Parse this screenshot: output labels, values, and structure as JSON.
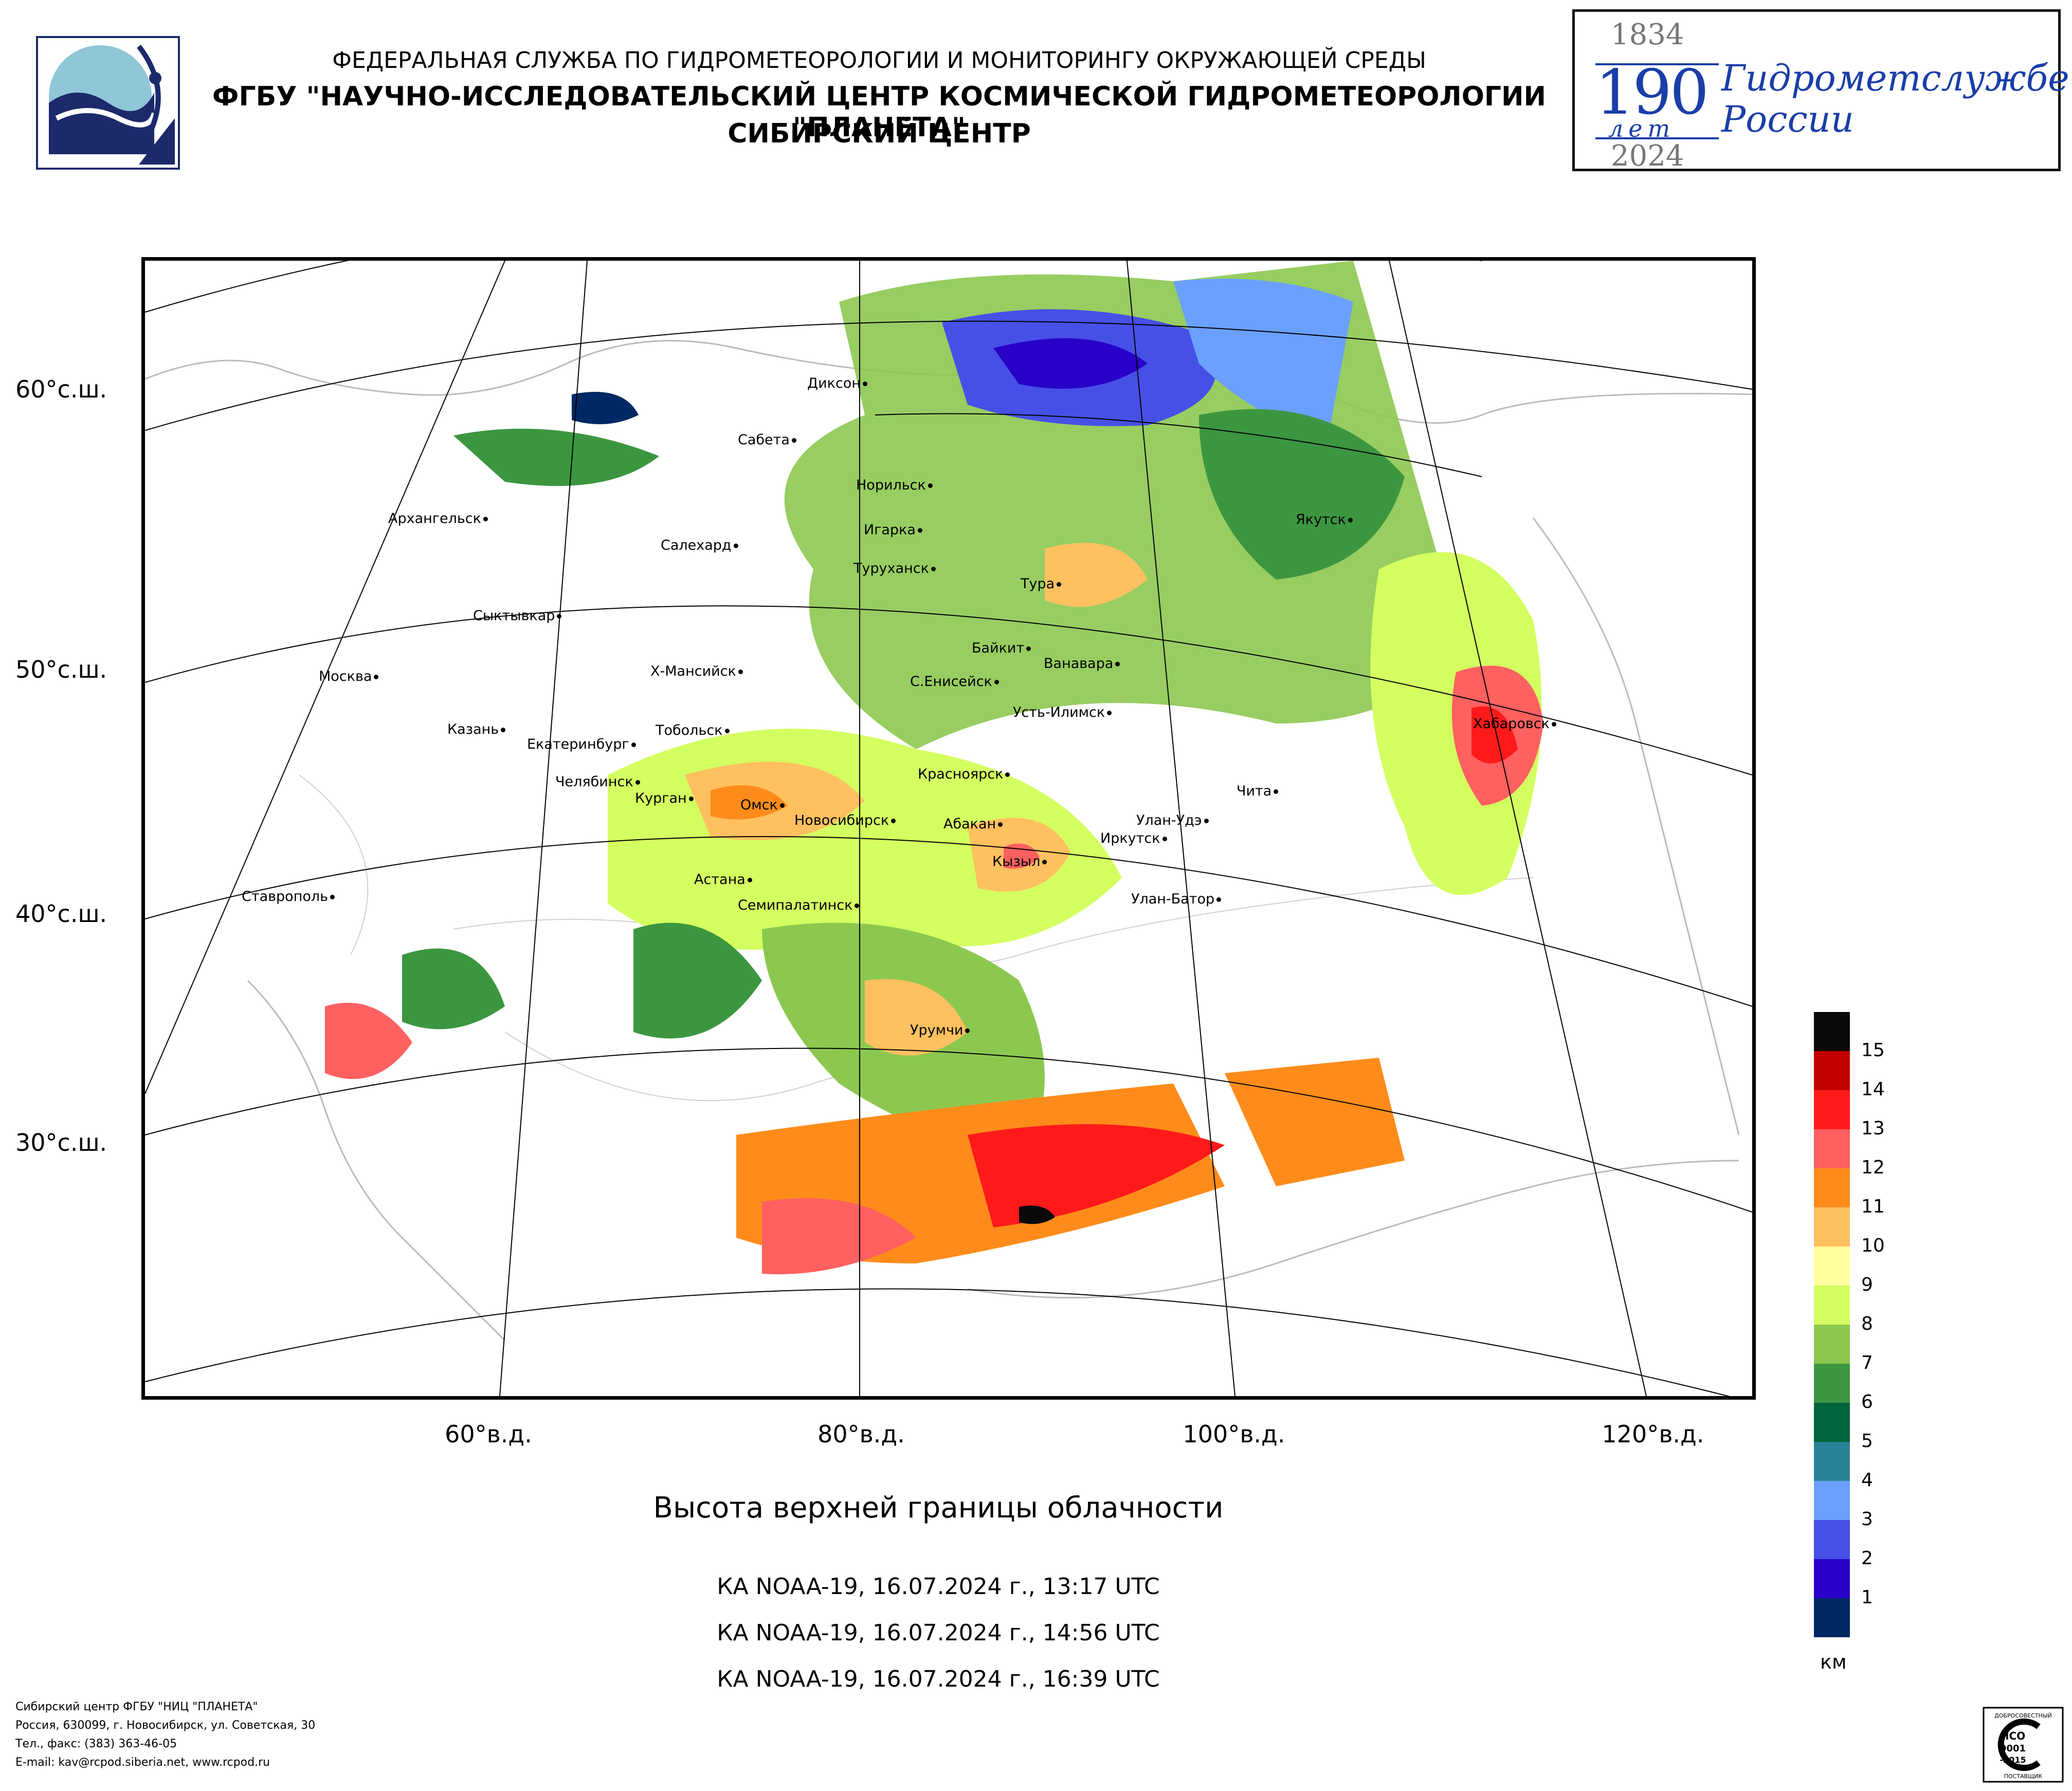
{
  "header": {
    "line1": "ФЕДЕРАЛЬНАЯ СЛУЖБА ПО ГИДРОМЕТЕОРОЛОГИИ И МОНИТОРИНГУ ОКРУЖАЮЩЕЙ СРЕДЫ",
    "line2": "ФГБУ \"НАУЧНО-ИССЛЕДОВАТЕЛЬСКИЙ ЦЕНТР КОСМИЧЕСКОЙ ГИДРОМЕТЕОРОЛОГИИ \"ПЛАНЕТА\"",
    "line3": "СИБИРСКИЙ ЦЕНТР"
  },
  "anniversary": {
    "year_start": "1834",
    "number": "190",
    "years_word": "лет",
    "year_end": "2024",
    "text_line1": "Гидрометслужбе",
    "text_line2": "России"
  },
  "map": {
    "lat_labels": [
      "60°с.ш.",
      "50°с.ш.",
      "40°с.ш.",
      "30°с.ш."
    ],
    "lon_labels": [
      "60°в.д.",
      "80°в.д.",
      "100°в.д.",
      "120°в.д."
    ],
    "cities": [
      {
        "name": "Диксон"
      },
      {
        "name": "Сабета"
      },
      {
        "name": "Норильск"
      },
      {
        "name": "Игарка"
      },
      {
        "name": "Архангельск"
      },
      {
        "name": "Салехард"
      },
      {
        "name": "Туруханск"
      },
      {
        "name": "Тура"
      },
      {
        "name": "Якутск"
      },
      {
        "name": "Сыктывкар"
      },
      {
        "name": "Байкит"
      },
      {
        "name": "Ванавара"
      },
      {
        "name": "Х-Мансийск"
      },
      {
        "name": "С.Енисейск"
      },
      {
        "name": "Москва"
      },
      {
        "name": "Усть-Илимск"
      },
      {
        "name": "Казань"
      },
      {
        "name": "Тобольск"
      },
      {
        "name": "Хабаровск"
      },
      {
        "name": "Екатеринбург"
      },
      {
        "name": "Красноярск"
      },
      {
        "name": "Челябинск"
      },
      {
        "name": "Чита"
      },
      {
        "name": "Курган"
      },
      {
        "name": "Омск"
      },
      {
        "name": "Новосибирск"
      },
      {
        "name": "Абакан"
      },
      {
        "name": "Улан-Удэ"
      },
      {
        "name": "Иркутск"
      },
      {
        "name": "Кызыл"
      },
      {
        "name": "Астана"
      },
      {
        "name": "Ставрополь"
      },
      {
        "name": "Семипалатинск"
      },
      {
        "name": "Улан-Батор"
      },
      {
        "name": "Урумчи"
      }
    ]
  },
  "legend": {
    "levels": [
      "15",
      "14",
      "13",
      "12",
      "11",
      "10",
      "9",
      "8",
      "7",
      "6",
      "5",
      "4",
      "3",
      "2",
      "1"
    ],
    "colors": [
      "#0a0a0a",
      "#c20000",
      "#ff1a1a",
      "#ff6060",
      "#ff8c1a",
      "#ffc060",
      "#ffffa0",
      "#d4ff60",
      "#8cc850",
      "#3c9640",
      "#00643c",
      "#2a8296",
      "#6aa0ff",
      "#4650e6",
      "#2800c8",
      "#002864"
    ],
    "unit": "км"
  },
  "title": "Высота верхней границы облачности",
  "passes": [
    "КА NOAA-19, 16.07.2024 г., 13:17 UTC",
    "КА NOAA-19, 16.07.2024 г., 14:56 UTC",
    "КА NOAA-19, 16.07.2024 г., 16:39 UTC"
  ],
  "footer": [
    "Сибирский центр ФГБУ \"НИЦ \"ПЛАНЕТА\"",
    "Россия, 630099, г. Новосибирск, ул. Советская, 30",
    "Тел., факс: (383) 363-46-05",
    "E-mail: kav@rcpod.siberia.net, www.rcpod.ru"
  ],
  "iso_badge": {
    "top": "ДОБРОСОВЕСТНЫЙ",
    "text1": "ИСО",
    "text2": "9001",
    "text3": "-2015",
    "bottom": "ПОСТАВЩИК"
  }
}
